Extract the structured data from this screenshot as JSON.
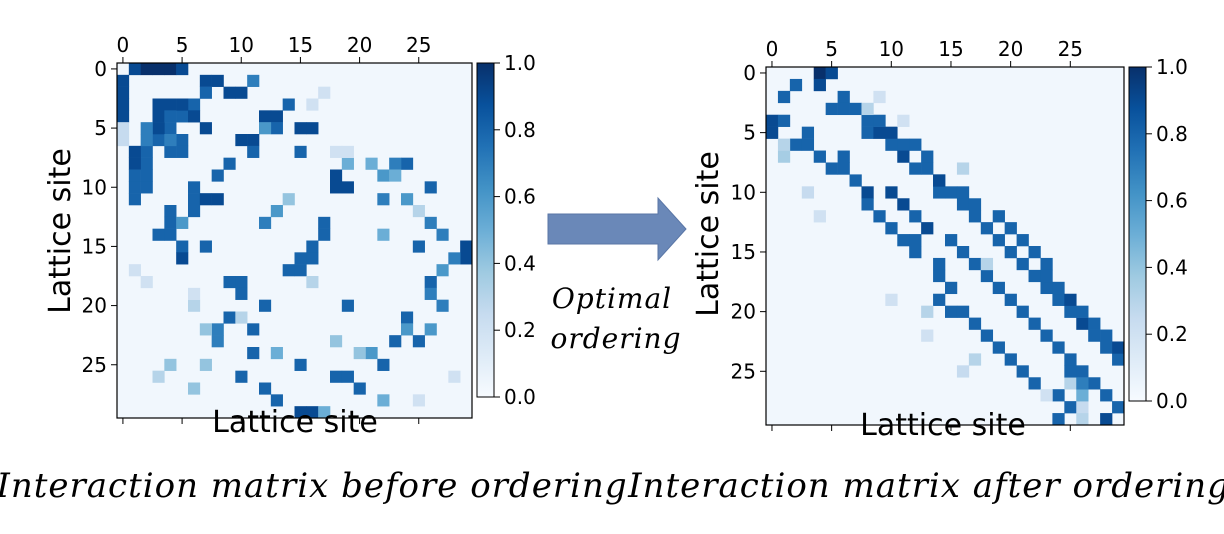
{
  "arrow_label": {
    "line1": "Optimal",
    "line2": "ordering"
  },
  "captions": {
    "left": "Interaction matrix before ordering",
    "right": "Interaction matrix after ordering"
  },
  "colors": {
    "low": "#f7fbff",
    "mid": "#6baed6",
    "high": "#08306b",
    "arrow": "#6a88b8"
  },
  "chart_data": [
    {
      "type": "heatmap",
      "title": "",
      "xlabel": "Lattice site",
      "ylabel": "Lattice site",
      "size": 30,
      "x_ticks": [
        0,
        5,
        10,
        15,
        20,
        25
      ],
      "y_ticks": [
        0,
        5,
        10,
        15,
        20,
        25
      ],
      "colorbar": {
        "range": [
          0.0,
          1.0
        ],
        "ticks": [
          "0.0",
          "0.2",
          "0.4",
          "0.6",
          "0.8",
          "1.0"
        ]
      },
      "background_value": 0.03,
      "cells": [
        [
          0,
          1,
          0.9
        ],
        [
          0,
          2,
          1
        ],
        [
          0,
          3,
          1
        ],
        [
          0,
          4,
          1
        ],
        [
          0,
          5,
          0.9
        ],
        [
          1,
          0,
          0.9
        ],
        [
          2,
          0,
          0.9
        ],
        [
          3,
          0,
          0.9
        ],
        [
          4,
          0,
          0.9
        ],
        [
          1,
          7,
          0.9
        ],
        [
          1,
          8,
          0.9
        ],
        [
          2,
          9,
          0.9
        ],
        [
          2,
          10,
          0.9
        ],
        [
          1,
          11,
          0.7
        ],
        [
          2,
          7,
          0.8
        ],
        [
          3,
          6,
          0.8
        ],
        [
          4,
          5,
          0.8
        ],
        [
          5,
          4,
          0.8
        ],
        [
          6,
          3,
          0.8
        ],
        [
          7,
          2,
          0.8
        ],
        [
          8,
          2,
          0.8
        ],
        [
          9,
          2,
          0.8
        ],
        [
          10,
          2,
          0.8
        ],
        [
          11,
          1,
          0.8
        ],
        [
          3,
          3,
          0.9
        ],
        [
          3,
          4,
          0.9
        ],
        [
          3,
          5,
          0.9
        ],
        [
          4,
          3,
          0.9
        ],
        [
          5,
          3,
          0.9
        ],
        [
          4,
          4,
          0.8
        ],
        [
          5,
          2,
          0.7
        ],
        [
          6,
          2,
          0.7
        ],
        [
          7,
          1,
          0.9
        ],
        [
          8,
          1,
          0.9
        ],
        [
          9,
          1,
          0.8
        ],
        [
          10,
          1,
          0.8
        ],
        [
          4,
          6,
          0.9
        ],
        [
          5,
          7,
          0.9
        ],
        [
          6,
          5,
          0.8
        ],
        [
          7,
          5,
          0.8
        ],
        [
          7,
          4,
          0.8
        ],
        [
          6,
          4,
          0.7
        ],
        [
          4,
          12,
          0.9
        ],
        [
          4,
          13,
          0.9
        ],
        [
          3,
          14,
          0.8
        ],
        [
          5,
          13,
          0.8
        ],
        [
          5,
          15,
          0.9
        ],
        [
          5,
          16,
          0.9
        ],
        [
          5,
          12,
          0.6
        ],
        [
          6,
          10,
          0.9
        ],
        [
          6,
          11,
          0.9
        ],
        [
          7,
          11,
          0.8
        ],
        [
          8,
          9,
          0.8
        ],
        [
          9,
          8,
          0.8
        ],
        [
          10,
          6,
          0.8
        ],
        [
          11,
          6,
          0.8
        ],
        [
          11,
          7,
          0.9
        ],
        [
          11,
          8,
          0.9
        ],
        [
          12,
          6,
          0.8
        ],
        [
          7,
          15,
          0.8
        ],
        [
          8,
          24,
          0.8
        ],
        [
          8,
          23,
          0.7
        ],
        [
          8,
          21,
          0.5
        ],
        [
          9,
          22,
          0.6
        ],
        [
          9,
          18,
          0.9
        ],
        [
          10,
          18,
          0.9
        ],
        [
          10,
          19,
          0.9
        ],
        [
          11,
          22,
          0.7
        ],
        [
          11,
          24,
          0.6
        ],
        [
          10,
          26,
          0.8
        ],
        [
          12,
          4,
          0.8
        ],
        [
          13,
          4,
          0.8
        ],
        [
          14,
          4,
          0.8
        ],
        [
          15,
          5,
          0.8
        ],
        [
          16,
          5,
          0.9
        ],
        [
          14,
          3,
          0.8
        ],
        [
          13,
          5,
          0.6
        ],
        [
          15,
          7,
          0.8
        ],
        [
          13,
          12,
          0.7
        ],
        [
          12,
          13,
          0.6
        ],
        [
          13,
          26,
          0.7
        ],
        [
          14,
          27,
          0.7
        ],
        [
          13,
          17,
          0.8
        ],
        [
          14,
          17,
          0.8
        ],
        [
          15,
          16,
          0.8
        ],
        [
          16,
          16,
          0.8
        ],
        [
          16,
          15,
          0.8
        ],
        [
          17,
          15,
          0.8
        ],
        [
          17,
          14,
          0.8
        ],
        [
          15,
          25,
          0.8
        ],
        [
          15,
          29,
          0.9
        ],
        [
          16,
          29,
          0.9
        ],
        [
          16,
          28,
          0.7
        ],
        [
          14,
          22,
          0.5
        ],
        [
          18,
          9,
          0.8
        ],
        [
          18,
          10,
          0.8
        ],
        [
          19,
          10,
          0.8
        ],
        [
          20,
          12,
          0.8
        ],
        [
          21,
          9,
          0.8
        ],
        [
          20,
          19,
          0.8
        ],
        [
          18,
          26,
          0.8
        ],
        [
          19,
          26,
          0.7
        ],
        [
          17,
          27,
          0.6
        ],
        [
          20,
          27,
          0.7
        ],
        [
          22,
          8,
          0.7
        ],
        [
          23,
          8,
          0.7
        ],
        [
          22,
          11,
          0.8
        ],
        [
          24,
          11,
          0.8
        ],
        [
          21,
          24,
          0.8
        ],
        [
          22,
          24,
          0.6
        ],
        [
          23,
          23,
          0.8
        ],
        [
          23,
          25,
          0.8
        ],
        [
          22,
          26,
          0.6
        ],
        [
          25,
          15,
          0.8
        ],
        [
          25,
          22,
          0.8
        ],
        [
          24,
          21,
          0.6
        ],
        [
          24,
          13,
          0.5
        ],
        [
          26,
          10,
          0.8
        ],
        [
          26,
          18,
          0.8
        ],
        [
          26,
          19,
          0.8
        ],
        [
          27,
          20,
          0.8
        ],
        [
          27,
          12,
          0.8
        ],
        [
          28,
          13,
          0.8
        ],
        [
          29,
          15,
          0.9
        ],
        [
          29,
          16,
          0.9
        ],
        [
          29,
          17,
          0.5
        ],
        [
          28,
          22,
          0.5
        ],
        [
          27,
          6,
          0.4
        ],
        [
          25,
          7,
          0.4
        ],
        [
          22,
          7,
          0.4
        ],
        [
          20,
          6,
          0.3
        ],
        [
          19,
          6,
          0.2
        ],
        [
          18,
          16,
          0.3
        ],
        [
          25,
          4,
          0.4
        ],
        [
          26,
          3,
          0.3
        ],
        [
          21,
          10,
          0.3
        ],
        [
          23,
          18,
          0.4
        ],
        [
          24,
          20,
          0.4
        ],
        [
          8,
          19,
          0.5
        ],
        [
          11,
          14,
          0.4
        ],
        [
          9,
          23,
          0.5
        ],
        [
          12,
          25,
          0.3
        ],
        [
          26,
          28,
          0.2
        ],
        [
          28,
          25,
          0.2
        ],
        [
          2,
          17,
          0.2
        ],
        [
          3,
          16,
          0.2
        ],
        [
          7,
          18,
          0.2
        ],
        [
          7,
          19,
          0.2
        ],
        [
          17,
          1,
          0.2
        ],
        [
          18,
          2,
          0.2
        ],
        [
          6,
          0,
          0.25
        ],
        [
          5,
          0,
          0.25
        ]
      ]
    },
    {
      "type": "heatmap",
      "title": "",
      "xlabel": "Lattice site",
      "ylabel": "Lattice site",
      "size": 30,
      "x_ticks": [
        0,
        5,
        10,
        15,
        20,
        25
      ],
      "y_ticks": [
        0,
        5,
        10,
        15,
        20,
        25
      ],
      "colorbar": {
        "range": [
          0.0,
          1.0
        ],
        "ticks": [
          "0.0",
          "0.2",
          "0.4",
          "0.6",
          "0.8",
          "1.0"
        ]
      },
      "background_value": 0.03,
      "cells": [
        [
          0,
          4,
          1
        ],
        [
          0,
          5,
          0.9
        ],
        [
          1,
          4,
          0.9
        ],
        [
          1,
          2,
          0.8
        ],
        [
          2,
          1,
          0.8
        ],
        [
          4,
          0,
          0.9
        ],
        [
          5,
          0,
          0.9
        ],
        [
          4,
          1,
          0.8
        ],
        [
          2,
          6,
          0.8
        ],
        [
          3,
          6,
          0.8
        ],
        [
          3,
          7,
          0.8
        ],
        [
          4,
          8,
          0.8
        ],
        [
          5,
          8,
          0.8
        ],
        [
          5,
          9,
          0.9
        ],
        [
          6,
          10,
          0.8
        ],
        [
          6,
          11,
          0.8
        ],
        [
          7,
          11,
          0.9
        ],
        [
          8,
          12,
          0.8
        ],
        [
          9,
          14,
          0.8
        ],
        [
          10,
          14,
          0.8
        ],
        [
          10,
          15,
          0.8
        ],
        [
          11,
          16,
          0.8
        ],
        [
          12,
          17,
          0.8
        ],
        [
          13,
          18,
          0.8
        ],
        [
          14,
          19,
          0.8
        ],
        [
          15,
          20,
          0.8
        ],
        [
          16,
          21,
          0.8
        ],
        [
          17,
          22,
          0.8
        ],
        [
          18,
          23,
          0.8
        ],
        [
          19,
          24,
          0.8
        ],
        [
          20,
          25,
          0.8
        ],
        [
          21,
          26,
          0.9
        ],
        [
          22,
          27,
          0.8
        ],
        [
          23,
          28,
          0.8
        ],
        [
          24,
          29,
          0.8
        ],
        [
          5,
          3,
          0.8
        ],
        [
          6,
          2,
          0.8
        ],
        [
          6,
          3,
          0.8
        ],
        [
          7,
          4,
          0.8
        ],
        [
          8,
          5,
          0.8
        ],
        [
          8,
          6,
          0.8
        ],
        [
          9,
          7,
          0.8
        ],
        [
          10,
          8,
          0.9
        ],
        [
          11,
          8,
          0.8
        ],
        [
          12,
          9,
          0.8
        ],
        [
          13,
          10,
          0.8
        ],
        [
          14,
          11,
          0.8
        ],
        [
          14,
          12,
          0.8
        ],
        [
          15,
          12,
          0.8
        ],
        [
          16,
          14,
          0.8
        ],
        [
          17,
          14,
          0.8
        ],
        [
          18,
          15,
          0.8
        ],
        [
          19,
          14,
          0.8
        ],
        [
          20,
          15,
          0.8
        ],
        [
          20,
          16,
          0.8
        ],
        [
          21,
          17,
          0.8
        ],
        [
          22,
          18,
          0.8
        ],
        [
          23,
          19,
          0.8
        ],
        [
          24,
          20,
          0.8
        ],
        [
          25,
          21,
          0.8
        ],
        [
          26,
          22,
          0.8
        ],
        [
          27,
          24,
          0.8
        ],
        [
          28,
          25,
          0.8
        ],
        [
          29,
          24,
          0.8
        ],
        [
          4,
          9,
          0.8
        ],
        [
          5,
          10,
          0.9
        ],
        [
          6,
          12,
          0.8
        ],
        [
          7,
          13,
          0.8
        ],
        [
          8,
          13,
          0.8
        ],
        [
          9,
          14,
          0.9
        ],
        [
          10,
          16,
          0.8
        ],
        [
          11,
          17,
          0.8
        ],
        [
          12,
          19,
          0.8
        ],
        [
          13,
          20,
          0.8
        ],
        [
          14,
          21,
          0.8
        ],
        [
          15,
          22,
          0.8
        ],
        [
          16,
          23,
          0.8
        ],
        [
          17,
          23,
          0.8
        ],
        [
          18,
          24,
          0.8
        ],
        [
          19,
          25,
          0.9
        ],
        [
          20,
          26,
          0.8
        ],
        [
          21,
          27,
          0.8
        ],
        [
          22,
          28,
          0.8
        ],
        [
          23,
          29,
          0.9
        ],
        [
          3,
          5,
          0.8
        ],
        [
          7,
          6,
          0.8
        ],
        [
          10,
          10,
          0.9
        ],
        [
          11,
          11,
          0.9
        ],
        [
          12,
          12,
          0.8
        ],
        [
          13,
          13,
          0.9
        ],
        [
          14,
          15,
          0.8
        ],
        [
          15,
          16,
          0.8
        ],
        [
          16,
          17,
          0.8
        ],
        [
          17,
          18,
          0.8
        ],
        [
          18,
          19,
          0.8
        ],
        [
          19,
          20,
          0.8
        ],
        [
          20,
          21,
          0.8
        ],
        [
          21,
          22,
          0.8
        ],
        [
          22,
          23,
          0.8
        ],
        [
          23,
          24,
          0.8
        ],
        [
          24,
          25,
          0.8
        ],
        [
          25,
          26,
          0.8
        ],
        [
          26,
          27,
          0.8
        ],
        [
          27,
          28,
          0.8
        ],
        [
          28,
          29,
          0.8
        ],
        [
          7,
          1,
          0.35
        ],
        [
          6,
          1,
          0.3
        ],
        [
          3,
          8,
          0.3
        ],
        [
          2,
          9,
          0.2
        ],
        [
          8,
          16,
          0.3
        ],
        [
          16,
          18,
          0.3
        ],
        [
          22,
          13,
          0.2
        ],
        [
          25,
          16,
          0.25
        ],
        [
          27,
          23,
          0.2
        ],
        [
          26,
          25,
          0.3
        ],
        [
          10,
          3,
          0.25
        ],
        [
          19,
          10,
          0.2
        ],
        [
          12,
          4,
          0.2
        ],
        [
          4,
          11,
          0.2
        ],
        [
          20,
          13,
          0.3
        ],
        [
          24,
          17,
          0.3
        ],
        [
          28,
          26,
          0.25
        ],
        [
          29,
          26,
          0.3
        ],
        [
          29,
          28,
          0.9
        ],
        [
          27,
          26,
          0.5
        ],
        [
          26,
          26,
          0.7
        ],
        [
          25,
          25,
          0.8
        ]
      ]
    }
  ]
}
